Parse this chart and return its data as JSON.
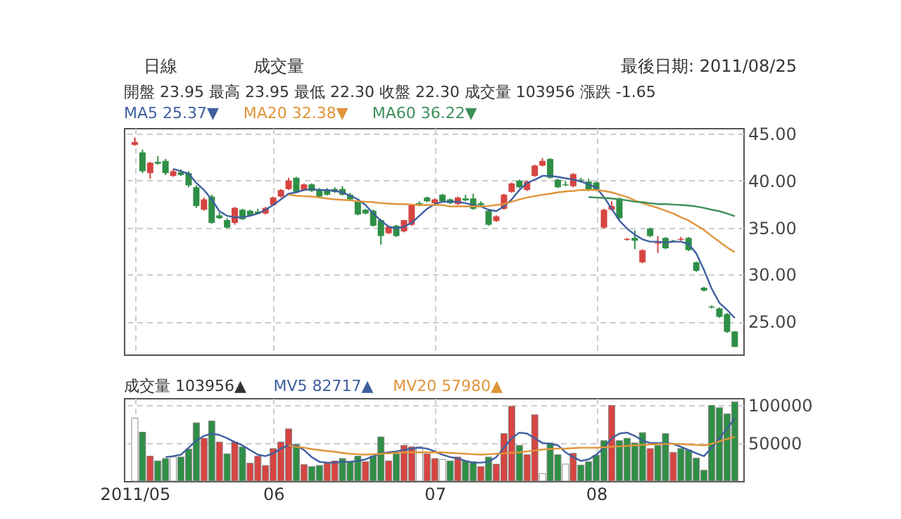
{
  "chart_data": [
    {
      "type": "candlestick",
      "categories": [
        "2011/05",
        null,
        null,
        null,
        null,
        null,
        null,
        null,
        null,
        null,
        null,
        null,
        null,
        null,
        null,
        null,
        null,
        null,
        "06",
        null,
        null,
        null,
        null,
        null,
        null,
        null,
        null,
        null,
        null,
        null,
        null,
        null,
        null,
        null,
        null,
        null,
        null,
        null,
        null,
        "07",
        null,
        null,
        null,
        null,
        null,
        null,
        null,
        null,
        null,
        null,
        null,
        null,
        null,
        null,
        null,
        null,
        null,
        null,
        null,
        null,
        "08",
        null,
        null,
        null,
        null,
        null,
        null,
        null,
        null,
        null,
        null,
        null,
        null,
        null,
        null,
        null,
        null,
        null,
        null
      ],
      "ohlc": [
        [
          43.8,
          44.6,
          43.7,
          44.1
        ],
        [
          43.0,
          43.3,
          40.8,
          41.0
        ],
        [
          40.8,
          42.0,
          40.2,
          41.9
        ],
        [
          42.0,
          42.6,
          41.7,
          41.8
        ],
        [
          42.1,
          42.3,
          40.6,
          40.8
        ],
        [
          40.5,
          41.2,
          40.4,
          41.0
        ],
        [
          40.9,
          41.2,
          40.5,
          40.6
        ],
        [
          40.8,
          41.0,
          39.3,
          39.5
        ],
        [
          39.3,
          39.5,
          37.1,
          37.3
        ],
        [
          36.9,
          38.2,
          36.8,
          38.0
        ],
        [
          38.3,
          38.5,
          35.4,
          35.5
        ],
        [
          36.3,
          36.6,
          35.9,
          36.0
        ],
        [
          35.8,
          36.0,
          34.9,
          35.0
        ],
        [
          35.5,
          37.2,
          35.3,
          37.1
        ],
        [
          36.9,
          37.0,
          35.8,
          35.9
        ],
        [
          36.8,
          36.9,
          36.2,
          36.3
        ],
        [
          36.7,
          37.0,
          36.4,
          36.5
        ],
        [
          36.5,
          37.2,
          36.4,
          37.1
        ],
        [
          37.4,
          38.3,
          37.3,
          38.2
        ],
        [
          38.3,
          39.1,
          38.2,
          39.0
        ],
        [
          39.1,
          40.3,
          39.0,
          40.0
        ],
        [
          40.3,
          40.4,
          38.7,
          38.8
        ],
        [
          39.0,
          39.7,
          38.9,
          39.6
        ],
        [
          39.6,
          39.7,
          38.8,
          38.9
        ],
        [
          39.1,
          39.2,
          38.2,
          38.3
        ],
        [
          39.0,
          39.2,
          38.4,
          38.5
        ],
        [
          39.1,
          39.3,
          38.7,
          38.8
        ],
        [
          39.1,
          39.4,
          38.4,
          38.5
        ],
        [
          38.5,
          38.7,
          37.9,
          38.0
        ],
        [
          37.8,
          37.9,
          36.3,
          36.4
        ],
        [
          36.9,
          37.0,
          36.4,
          36.5
        ],
        [
          36.8,
          36.9,
          35.1,
          35.2
        ],
        [
          35.8,
          35.9,
          33.2,
          34.1
        ],
        [
          34.4,
          35.2,
          34.3,
          35.1
        ],
        [
          35.2,
          35.3,
          34.0,
          34.1
        ],
        [
          34.6,
          35.8,
          34.5,
          35.8
        ],
        [
          35.3,
          37.5,
          35.2,
          37.4
        ],
        [
          37.6,
          37.8,
          37.3,
          37.4
        ],
        [
          38.2,
          38.3,
          37.7,
          37.8
        ],
        [
          37.6,
          38.1,
          37.5,
          38.0
        ],
        [
          38.5,
          38.6,
          37.7,
          37.8
        ],
        [
          38.0,
          38.1,
          37.5,
          37.6
        ],
        [
          37.5,
          38.3,
          37.4,
          38.2
        ],
        [
          38.1,
          38.5,
          37.8,
          37.9
        ],
        [
          38.1,
          38.6,
          36.9,
          37.0
        ],
        [
          37.6,
          37.8,
          37.3,
          37.4
        ],
        [
          36.8,
          36.9,
          35.2,
          35.3
        ],
        [
          35.7,
          36.3,
          35.6,
          36.2
        ],
        [
          37.0,
          38.6,
          36.9,
          38.5
        ],
        [
          38.8,
          39.8,
          38.7,
          39.7
        ],
        [
          40.0,
          40.1,
          39.2,
          39.3
        ],
        [
          39.0,
          40.0,
          38.9,
          39.9
        ],
        [
          40.5,
          41.7,
          40.4,
          41.6
        ],
        [
          41.6,
          42.4,
          41.5,
          42.1
        ],
        [
          42.3,
          42.4,
          40.2,
          40.3
        ],
        [
          40.1,
          40.2,
          39.2,
          39.3
        ],
        [
          39.6,
          39.9,
          39.4,
          39.5
        ],
        [
          39.4,
          40.8,
          39.3,
          40.7
        ],
        [
          40.1,
          40.3,
          39.8,
          40.0
        ],
        [
          39.9,
          40.2,
          38.9,
          39.0
        ],
        [
          39.8,
          39.9,
          38.9,
          39.0
        ],
        [
          35.0,
          37.0,
          34.9,
          36.9
        ],
        [
          36.9,
          37.8,
          36.8,
          37.3
        ],
        [
          38.1,
          38.2,
          35.9,
          36.0
        ],
        [
          33.7,
          33.9,
          33.6,
          33.8
        ],
        [
          33.9,
          34.7,
          32.7,
          33.6
        ],
        [
          31.3,
          32.7,
          31.2,
          32.6
        ],
        [
          34.9,
          35.0,
          34.0,
          34.1
        ],
        [
          33.3,
          34.1,
          32.3,
          33.4
        ],
        [
          33.9,
          34.0,
          32.7,
          32.8
        ],
        [
          33.6,
          33.7,
          33.4,
          33.5
        ],
        [
          33.7,
          34.0,
          33.6,
          33.8
        ],
        [
          33.9,
          34.0,
          32.5,
          32.6
        ],
        [
          31.3,
          31.4,
          30.3,
          30.4
        ],
        [
          28.6,
          28.7,
          28.2,
          28.3
        ],
        [
          26.6,
          26.7,
          26.4,
          26.5
        ],
        [
          26.4,
          26.5,
          25.4,
          25.5
        ],
        [
          25.8,
          25.9,
          23.8,
          23.9
        ],
        [
          23.95,
          23.95,
          22.3,
          22.3
        ]
      ],
      "colors": [
        "#d64541",
        "#2f8f46",
        "#d64541",
        "#2f8f46",
        "#2f8f46",
        "#d64541",
        "#2f8f46",
        "#2f8f46",
        "#2f8f46",
        "#d64541",
        "#2f8f46",
        "#2f8f46",
        "#2f8f46",
        "#d64541",
        "#2f8f46",
        "#2f8f46",
        "#2f8f46",
        "#d64541",
        "#d64541",
        "#d64541",
        "#d64541",
        "#2f8f46",
        "#d64541",
        "#2f8f46",
        "#2f8f46",
        "#2f8f46",
        "#2f8f46",
        "#2f8f46",
        "#2f8f46",
        "#2f8f46",
        "#2f8f46",
        "#2f8f46",
        "#2f8f46",
        "#d64541",
        "#2f8f46",
        "#d64541",
        "#d64541",
        "#2f8f46",
        "#2f8f46",
        "#d64541",
        "#2f8f46",
        "#2f8f46",
        "#d64541",
        "#2f8f46",
        "#2f8f46",
        "#2f8f46",
        "#2f8f46",
        "#d64541",
        "#d64541",
        "#d64541",
        "#2f8f46",
        "#d64541",
        "#d64541",
        "#d64541",
        "#2f8f46",
        "#2f8f46",
        "#2f8f46",
        "#d64541",
        "#2f8f46",
        "#2f8f46",
        "#2f8f46",
        "#d64541",
        "#d64541",
        "#2f8f46",
        "#d64541",
        "#2f8f46",
        "#d64541",
        "#2f8f46",
        "#d64541",
        "#2f8f46",
        "#2f8f46",
        "#d64541",
        "#2f8f46",
        "#2f8f46",
        "#2f8f46",
        "#2f8f46",
        "#2f8f46",
        "#2f8f46",
        "#2f8f46"
      ],
      "series": [
        {
          "name": "MA5 25.37▼",
          "type": "line",
          "color": "#3f5f9f",
          "values": [
            null,
            null,
            null,
            null,
            null,
            41.25,
            41.0,
            40.75,
            39.75,
            39.0,
            38.0,
            36.75,
            36.25,
            36.1,
            36.1,
            36.25,
            36.5,
            36.9,
            37.4,
            38.0,
            38.6,
            38.75,
            39.0,
            39.1,
            39.0,
            39.0,
            38.9,
            38.75,
            38.4,
            38.0,
            37.4,
            36.5,
            35.75,
            35.1,
            34.9,
            35.1,
            35.5,
            36.25,
            37.0,
            37.5,
            37.75,
            37.75,
            37.75,
            37.6,
            37.4,
            37.25,
            36.9,
            36.75,
            37.25,
            38.0,
            39.0,
            39.75,
            40.1,
            40.5,
            40.5,
            40.4,
            40.25,
            40.1,
            39.9,
            39.6,
            39.25,
            38.25,
            37.0,
            35.75,
            34.9,
            34.25,
            33.75,
            33.5,
            33.5,
            33.4,
            33.5,
            33.5,
            33.25,
            32.25,
            30.5,
            28.5,
            27.0,
            26.25,
            25.37
          ]
        },
        {
          "name": "MA20 32.38▼",
          "type": "line",
          "color": "#e0953a",
          "values": [
            null,
            null,
            null,
            null,
            null,
            null,
            null,
            null,
            null,
            null,
            null,
            null,
            null,
            null,
            null,
            null,
            null,
            null,
            null,
            null,
            38.5,
            38.4,
            38.35,
            38.3,
            38.2,
            38.1,
            38.0,
            37.95,
            37.9,
            37.8,
            37.75,
            37.7,
            37.6,
            37.55,
            37.5,
            37.5,
            37.45,
            37.4,
            37.4,
            37.4,
            37.4,
            37.25,
            37.25,
            37.25,
            37.25,
            37.25,
            37.3,
            37.4,
            37.5,
            37.75,
            38.0,
            38.2,
            38.35,
            38.5,
            38.6,
            38.75,
            38.85,
            38.9,
            39.0,
            39.0,
            39.0,
            38.9,
            38.75,
            38.5,
            38.25,
            37.9,
            37.6,
            37.35,
            37.1,
            36.8,
            36.5,
            36.1,
            35.75,
            35.25,
            34.75,
            34.1,
            33.5,
            32.9,
            32.38
          ]
        },
        {
          "name": "MA60 36.22▼",
          "type": "line",
          "color": "#3d8f5a",
          "values": [
            null,
            null,
            null,
            null,
            null,
            null,
            null,
            null,
            null,
            null,
            null,
            null,
            null,
            null,
            null,
            null,
            null,
            null,
            null,
            null,
            null,
            null,
            null,
            null,
            null,
            null,
            null,
            null,
            null,
            null,
            null,
            null,
            null,
            null,
            null,
            null,
            null,
            null,
            null,
            null,
            null,
            null,
            null,
            null,
            null,
            null,
            null,
            null,
            null,
            null,
            null,
            null,
            null,
            null,
            null,
            null,
            null,
            null,
            null,
            38.25,
            38.2,
            38.15,
            38.1,
            38.0,
            37.9,
            37.75,
            37.7,
            37.6,
            37.5,
            37.5,
            37.45,
            37.4,
            37.35,
            37.25,
            37.1,
            36.9,
            36.75,
            36.5,
            36.22
          ]
        }
      ],
      "ylim": [
        21.5,
        45.6
      ],
      "yticks": [
        {
          "value": 25,
          "label": "25.00"
        },
        {
          "value": 30,
          "label": "30.00"
        },
        {
          "value": 35,
          "label": "35.00"
        },
        {
          "value": 40,
          "label": "40.00"
        },
        {
          "value": 45,
          "label": "45.00"
        }
      ],
      "grid": true,
      "tick_labels": "y",
      "legend": "top left",
      "annotations": [
        "日線",
        "成交量",
        "最後日期: 2011/08/25",
        "開盤 23.95  最高 23.95  最低 22.30  收盤 22.30  成交量 103956  漲跌 -1.65"
      ]
    },
    {
      "type": "bar",
      "categories": [
        "2011/05",
        null,
        null,
        null,
        null,
        null,
        null,
        null,
        null,
        null,
        null,
        null,
        null,
        null,
        null,
        null,
        null,
        null,
        "06",
        null,
        null,
        null,
        null,
        null,
        null,
        null,
        null,
        null,
        null,
        null,
        null,
        null,
        null,
        null,
        null,
        null,
        null,
        null,
        null,
        "07",
        null,
        null,
        null,
        null,
        null,
        null,
        null,
        null,
        null,
        null,
        null,
        null,
        null,
        null,
        null,
        null,
        null,
        null,
        null,
        null,
        "08",
        null,
        null,
        null,
        null,
        null,
        null,
        null,
        null,
        null,
        null,
        null,
        null,
        null,
        null,
        null,
        null,
        null,
        null
      ],
      "series": [
        {
          "name": "成交量 103956▲",
          "colors": [
            "#ffffff",
            "#2f8f46",
            "#d64541",
            "#2f8f46",
            "#2f8f46",
            "#ffffff",
            "#2f8f46",
            "#2f8f46",
            "#2f8f46",
            "#d64541",
            "#2f8f46",
            "#d64541",
            "#2f8f46",
            "#d64541",
            "#2f8f46",
            "#d64541",
            "#d64541",
            "#d64541",
            "#d64541",
            "#d64541",
            "#d64541",
            "#2f8f46",
            "#d64541",
            "#2f8f46",
            "#2f8f46",
            "#d64541",
            "#d64541",
            "#2f8f46",
            "#2f8f46",
            "#2f8f46",
            "#d64541",
            "#2f8f46",
            "#2f8f46",
            "#d64541",
            "#2f8f46",
            "#d64541",
            "#d64541",
            "#ffffff",
            "#d64541",
            "#d64541",
            "#ffffff",
            "#2f8f46",
            "#d64541",
            "#2f8f46",
            "#2f8f46",
            "#d64541",
            "#2f8f46",
            "#d64541",
            "#d64541",
            "#d64541",
            "#2f8f46",
            "#d64541",
            "#d64541",
            "#ffffff",
            "#2f8f46",
            "#2f8f46",
            "#ffffff",
            "#d64541",
            "#2f8f46",
            "#2f8f46",
            "#2f8f46",
            "#2f8f46",
            "#d64541",
            "#2f8f46",
            "#2f8f46",
            "#2f8f46",
            "#2f8f46",
            "#d64541",
            "#2f8f46",
            "#2f8f46",
            "#d64541",
            "#2f8f46",
            "#2f8f46",
            "#2f8f46",
            "#2f8f46",
            "#2f8f46",
            "#2f8f46",
            "#2f8f46",
            "#2f8f46"
          ],
          "values": [
            82700,
            64200,
            32700,
            26500,
            29600,
            31500,
            31500,
            42000,
            76500,
            56200,
            79000,
            51200,
            35800,
            51200,
            45000,
            23500,
            32700,
            20400,
            42600,
            51200,
            68500,
            48100,
            21600,
            19100,
            20400,
            23500,
            26500,
            29600,
            25300,
            32700,
            25300,
            32700,
            58000,
            26500,
            35800,
            46900,
            45000,
            45000,
            35800,
            29600,
            28400,
            26500,
            31500,
            26500,
            25300,
            19100,
            31500,
            22200,
            62300,
            98100,
            46900,
            34600,
            87000,
            9900,
            50000,
            34600,
            22200,
            36400,
            21000,
            25300,
            34000,
            53100,
            99400,
            53100,
            56200,
            50000,
            63600,
            42600,
            46900,
            62300,
            37700,
            42600,
            40700,
            30200,
            14200,
            99400,
            96300,
            88300,
            103956
          ]
        },
        {
          "name": "MV5 82717▲",
          "type": "line",
          "color": "#3f5f9f",
          "values": [
            null,
            null,
            null,
            null,
            31500,
            32700,
            34600,
            43800,
            53100,
            59300,
            62300,
            60500,
            56200,
            51200,
            46900,
            40700,
            34600,
            32700,
            36400,
            42600,
            46900,
            46900,
            40700,
            31500,
            25300,
            24100,
            24100,
            25300,
            25300,
            26500,
            28400,
            32700,
            36400,
            37700,
            38900,
            40700,
            42600,
            43800,
            42600,
            38900,
            34600,
            31500,
            29600,
            26500,
            24100,
            24100,
            25300,
            31500,
            43800,
            56200,
            63600,
            62300,
            56200,
            50000,
            48800,
            46900,
            37700,
            31500,
            26500,
            28400,
            34600,
            43800,
            56200,
            62300,
            63600,
            59300,
            53100,
            50000,
            50000,
            50000,
            48800,
            45000,
            40700,
            36400,
            32700,
            43800,
            56200,
            68500,
            82717
          ]
        },
        {
          "name": "MV20 57980▲",
          "type": "line",
          "color": "#e0953a",
          "values": [
            null,
            null,
            null,
            null,
            null,
            null,
            null,
            null,
            null,
            null,
            null,
            null,
            null,
            null,
            null,
            null,
            null,
            null,
            null,
            null,
            46900,
            45000,
            43800,
            42000,
            40700,
            39500,
            38300,
            37000,
            35800,
            35200,
            34600,
            35200,
            35800,
            36400,
            37000,
            37700,
            37700,
            37700,
            37700,
            37700,
            37700,
            37000,
            36400,
            35800,
            35200,
            34600,
            35200,
            35800,
            36400,
            37000,
            37700,
            38900,
            40100,
            41300,
            42000,
            42600,
            42600,
            43200,
            43800,
            43800,
            43800,
            44400,
            45000,
            45600,
            46200,
            46900,
            47500,
            48100,
            48500,
            48800,
            48800,
            48500,
            48100,
            47500,
            46900,
            49000,
            52000,
            55000,
            57980
          ]
        }
      ],
      "ylim": [
        0,
        109000
      ],
      "yticks": [
        50000,
        100000
      ],
      "grid": true,
      "legend": "top left"
    }
  ]
}
